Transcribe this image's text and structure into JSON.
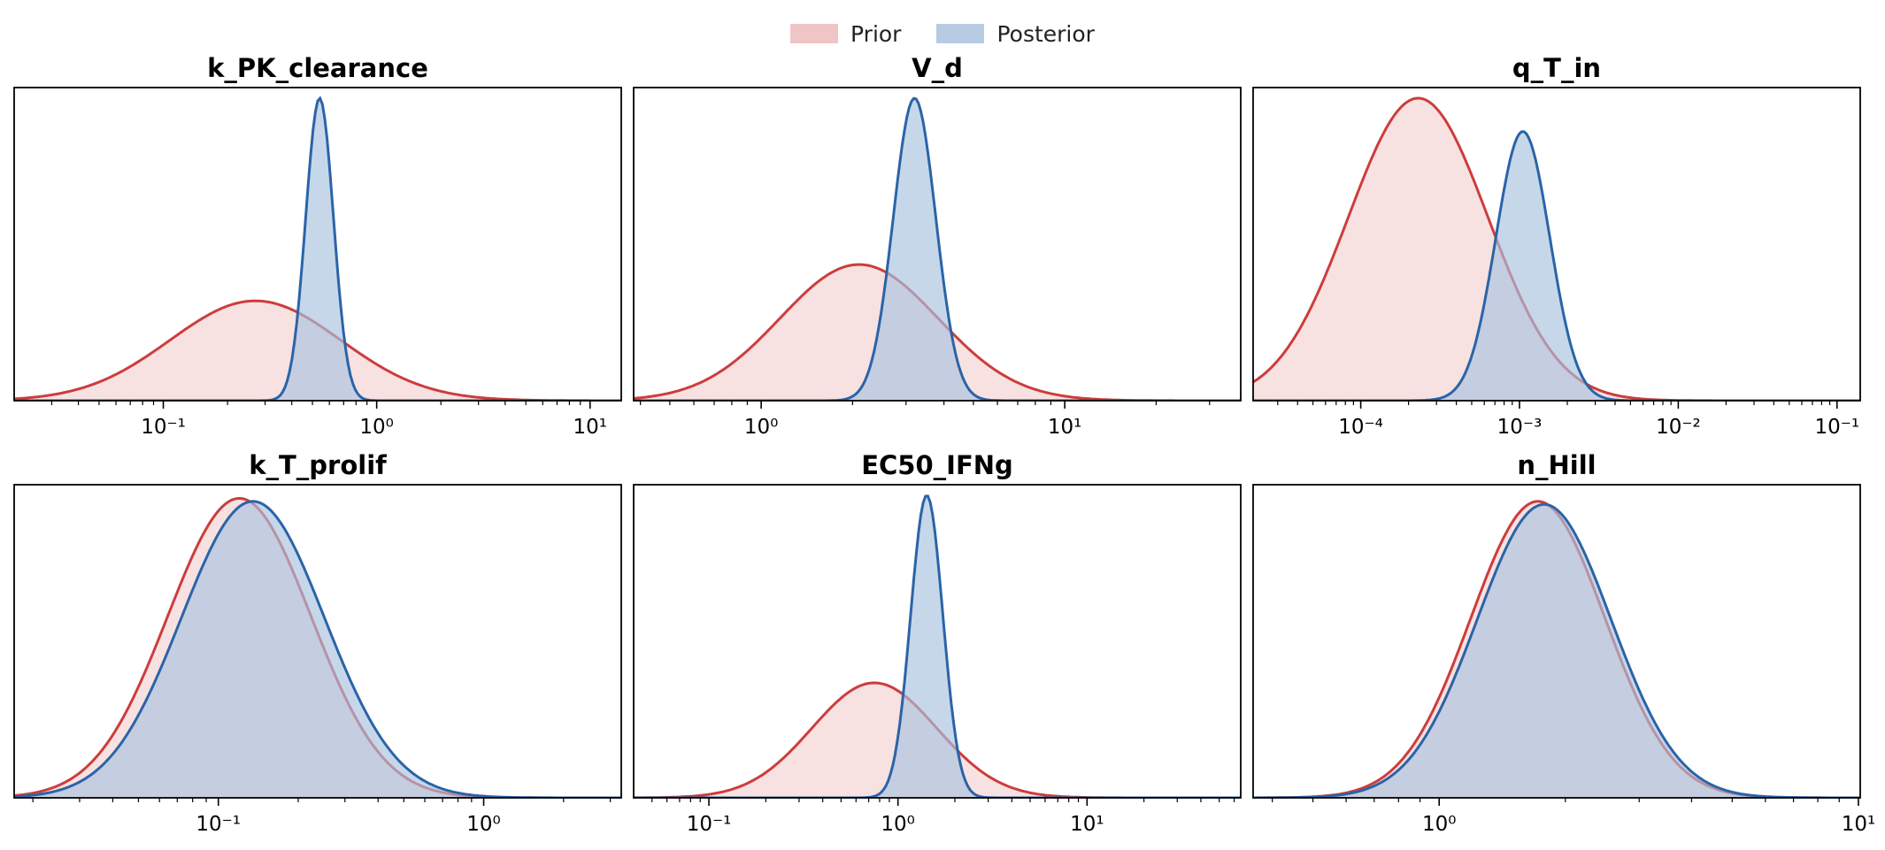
{
  "legend": {
    "placement": "top-center",
    "items": [
      {
        "label": "Prior",
        "color": "#f0c5c5"
      },
      {
        "label": "Posterior",
        "color": "#b7cbe2"
      }
    ]
  },
  "colors": {
    "prior_line": "#cc3d3d",
    "prior_fill": "#f2c8c9",
    "posterior_line": "#2a64a8",
    "posterior_fill": "#a9c2de"
  },
  "chart_data": [
    {
      "type": "area",
      "title": "k_PK_clearance",
      "xscale": "log",
      "xlim": [
        0.02,
        14
      ],
      "tick_labels": [
        "10⁻¹",
        "10⁰",
        "10¹"
      ],
      "tick_values": [
        0.1,
        1,
        10
      ],
      "yaxis_visible": false,
      "series": [
        {
          "name": "Prior",
          "peak_x": 0.27,
          "log10_sigma": 0.4,
          "peak_height": 0.33
        },
        {
          "name": "Posterior",
          "peak_x": 0.54,
          "log10_sigma": 0.065,
          "peak_height": 1.0
        }
      ]
    },
    {
      "type": "area",
      "title": "V_d",
      "xscale": "log",
      "xlim": [
        0.38,
        38
      ],
      "tick_labels": [
        "10⁰",
        "10¹"
      ],
      "tick_values": [
        1,
        10
      ],
      "yaxis_visible": false,
      "series": [
        {
          "name": "Prior",
          "peak_x": 2.1,
          "log10_sigma": 0.26,
          "peak_height": 0.45
        },
        {
          "name": "Posterior",
          "peak_x": 3.2,
          "log10_sigma": 0.07,
          "peak_height": 1.0
        }
      ]
    },
    {
      "type": "area",
      "title": "q_T_in",
      "xscale": "log",
      "xlim": [
        2.1e-05,
        0.14
      ],
      "tick_labels": [
        "10⁻⁴",
        "10⁻³",
        "10⁻²",
        "10⁻¹"
      ],
      "tick_values": [
        0.0001,
        0.001,
        0.01,
        0.1
      ],
      "yaxis_visible": false,
      "series": [
        {
          "name": "Prior",
          "peak_x": 0.00023,
          "log10_sigma": 0.44,
          "peak_height": 1.0
        },
        {
          "name": "Posterior",
          "peak_x": 0.00105,
          "log10_sigma": 0.17,
          "peak_height": 0.89
        }
      ]
    },
    {
      "type": "area",
      "title": "k_T_prolif",
      "xscale": "log",
      "xlim": [
        0.017,
        3.3
      ],
      "tick_labels": [
        "10⁻¹",
        "10⁰"
      ],
      "tick_values": [
        0.1,
        1
      ],
      "yaxis_visible": false,
      "series": [
        {
          "name": "Prior",
          "peak_x": 0.12,
          "log10_sigma": 0.27,
          "peak_height": 0.99
        },
        {
          "name": "Posterior",
          "peak_x": 0.135,
          "log10_sigma": 0.27,
          "peak_height": 0.98
        }
      ]
    },
    {
      "type": "area",
      "title": "EC50_IFNg",
      "xscale": "log",
      "xlim": [
        0.04,
        65
      ],
      "tick_labels": [
        "10⁻¹",
        "10⁰",
        "10¹"
      ],
      "tick_values": [
        0.1,
        1,
        10
      ],
      "yaxis_visible": false,
      "series": [
        {
          "name": "Prior",
          "peak_x": 0.75,
          "log10_sigma": 0.33,
          "peak_height": 0.38
        },
        {
          "name": "Posterior",
          "peak_x": 1.42,
          "log10_sigma": 0.085,
          "peak_height": 1.0
        }
      ]
    },
    {
      "type": "area",
      "title": "n_Hill",
      "xscale": "log",
      "xlim": [
        0.36,
        10.1
      ],
      "tick_labels": [
        "10⁰",
        "10¹"
      ],
      "tick_values": [
        1,
        10
      ],
      "yaxis_visible": false,
      "series": [
        {
          "name": "Prior",
          "peak_x": 1.72,
          "log10_sigma": 0.16,
          "peak_height": 0.98
        },
        {
          "name": "Posterior",
          "peak_x": 1.78,
          "log10_sigma": 0.16,
          "peak_height": 0.97
        }
      ]
    }
  ]
}
